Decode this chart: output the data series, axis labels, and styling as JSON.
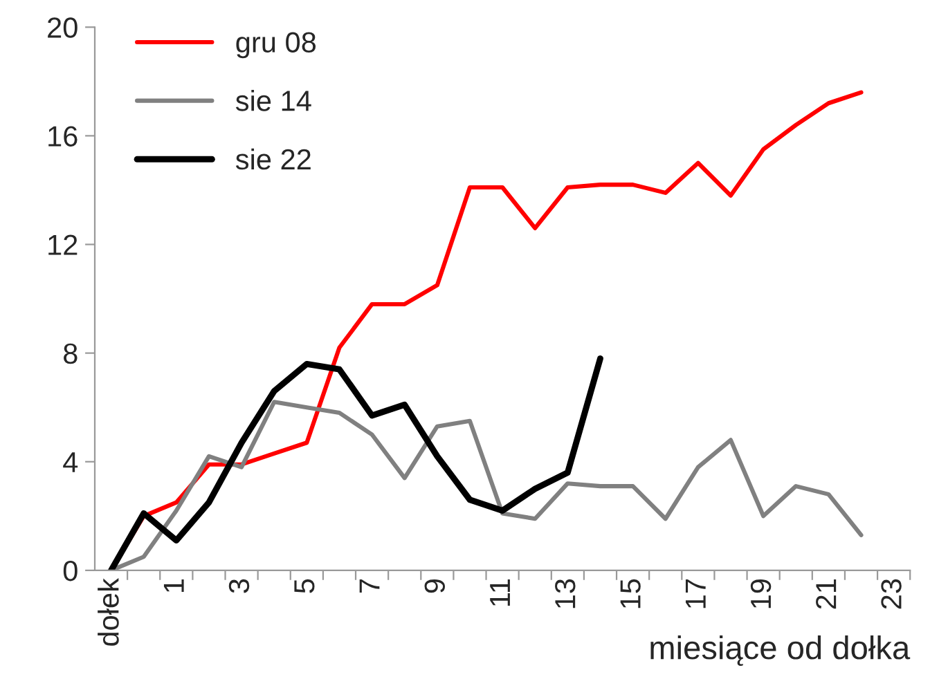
{
  "chart_data": {
    "type": "line",
    "xlabel": "miesiące od dołka",
    "categories": [
      "dołek",
      null,
      "1",
      null,
      "3",
      null,
      "5",
      null,
      "7",
      null,
      "9",
      null,
      "11",
      null,
      "13",
      null,
      "15",
      null,
      "17",
      null,
      "19",
      null,
      "21",
      null,
      "23"
    ],
    "series": [
      {
        "name": "gru 08",
        "color": "#ff0000",
        "values": [
          0,
          2.0,
          2.5,
          3.9,
          3.9,
          4.3,
          4.7,
          8.2,
          9.8,
          9.8,
          10.5,
          14.1,
          14.1,
          12.6,
          14.1,
          14.2,
          14.2,
          13.9,
          15.0,
          13.8,
          15.5,
          16.4,
          17.2,
          17.6,
          null
        ]
      },
      {
        "name": "sie 14",
        "color": "#808080",
        "values": [
          0,
          0.5,
          2.2,
          4.2,
          3.8,
          6.2,
          6.0,
          5.8,
          5.0,
          3.4,
          5.3,
          5.5,
          2.1,
          1.9,
          3.2,
          3.1,
          3.1,
          1.9,
          3.8,
          4.8,
          2.0,
          3.1,
          2.8,
          1.3,
          null
        ]
      },
      {
        "name": "sie 22",
        "color": "#000000",
        "values": [
          0,
          2.1,
          1.1,
          2.5,
          4.7,
          6.6,
          7.6,
          7.4,
          5.7,
          6.1,
          4.2,
          2.6,
          2.2,
          3.0,
          3.6,
          7.8,
          null,
          null,
          null,
          null,
          null,
          null,
          null,
          null,
          null
        ]
      }
    ],
    "ylim": [
      0,
      20
    ],
    "yticks": [
      0,
      4,
      8,
      12,
      16,
      20
    ],
    "grid": false,
    "legend": "top left",
    "marker": "none",
    "line_style": "solid"
  }
}
